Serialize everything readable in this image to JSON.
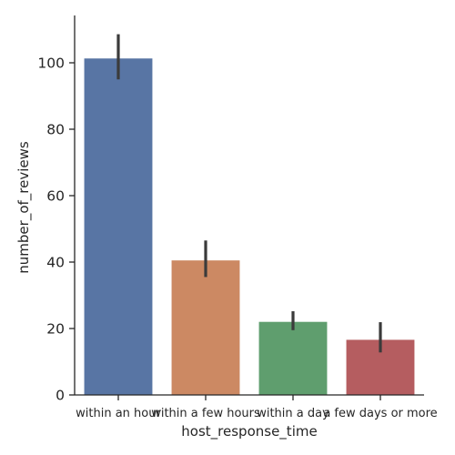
{
  "chart_data": {
    "type": "bar",
    "title": "",
    "xlabel": "host_response_time",
    "ylabel": "number_of_reviews",
    "categories": [
      "within an hour",
      "within a few hours",
      "within a day",
      "a few days or more"
    ],
    "values": [
      101.3,
      40.5,
      22.0,
      16.6
    ],
    "ci_low": [
      95.0,
      35.5,
      19.5,
      12.8
    ],
    "ci_high": [
      108.6,
      46.5,
      25.2,
      21.9
    ],
    "colors": [
      "#5875a4",
      "#cc8963",
      "#5f9e6e",
      "#b55d60"
    ],
    "yticks": [
      0,
      20,
      40,
      60,
      80,
      100
    ],
    "ylim": [
      0,
      114
    ],
    "grid": false,
    "legend": "none"
  }
}
